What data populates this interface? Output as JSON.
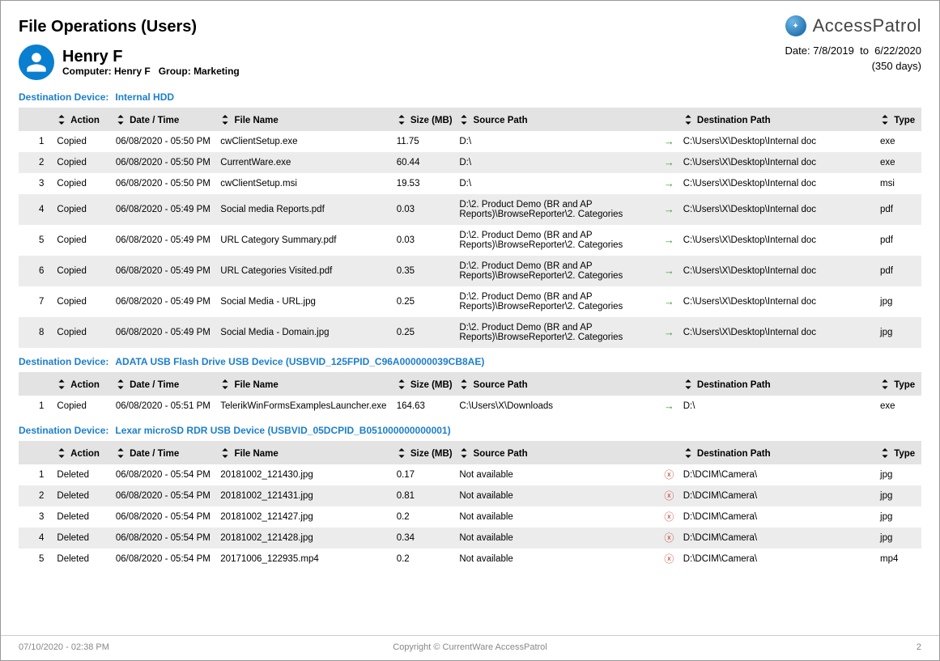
{
  "page": {
    "title": "File Operations (Users)",
    "brand": "AccessPatrol",
    "footer_timestamp": "07/10/2020 - 02:38 PM",
    "footer_copyright": "Copyright © CurrentWare AccessPatrol",
    "footer_page": "2"
  },
  "user": {
    "name": "Henry F",
    "computer_label": "Computer:",
    "computer_value": "Henry F",
    "group_label": "Group:",
    "group_value": "Marketing"
  },
  "daterange": {
    "prefix": "Date:",
    "from": "7/8/2019",
    "to_word": "to",
    "to": "6/22/2020",
    "days": "(350 days)"
  },
  "labels": {
    "dest_device": "Destination Device:",
    "col_action": "Action",
    "col_datetime": "Date / Time",
    "col_filename": "File Name",
    "col_size": "Size (MB)",
    "col_source": "Source Path",
    "col_dest": "Destination Path",
    "col_type": "Type"
  },
  "sections": [
    {
      "device": "Internal HDD",
      "rows": [
        {
          "idx": "1",
          "action": "Copied",
          "dt": "06/08/2020 - 05:50 PM",
          "fn": "cwClientSetup.exe",
          "size": "11.75",
          "src": "D:\\",
          "icon": "arrow",
          "dst": "C:\\Users\\X\\Desktop\\Internal doc",
          "type": "exe"
        },
        {
          "idx": "2",
          "action": "Copied",
          "dt": "06/08/2020 - 05:50 PM",
          "fn": "CurrentWare.exe",
          "size": "60.44",
          "src": "D:\\",
          "icon": "arrow",
          "dst": "C:\\Users\\X\\Desktop\\Internal doc",
          "type": "exe"
        },
        {
          "idx": "3",
          "action": "Copied",
          "dt": "06/08/2020 - 05:50 PM",
          "fn": "cwClientSetup.msi",
          "size": "19.53",
          "src": "D:\\",
          "icon": "arrow",
          "dst": "C:\\Users\\X\\Desktop\\Internal doc",
          "type": "msi"
        },
        {
          "idx": "4",
          "action": "Copied",
          "dt": "06/08/2020 - 05:49 PM",
          "fn": "Social media Reports.pdf",
          "size": "0.03",
          "src": "D:\\2. Product Demo (BR and AP Reports)\\BrowseReporter\\2. Categories",
          "icon": "arrow",
          "dst": "C:\\Users\\X\\Desktop\\Internal doc",
          "type": "pdf"
        },
        {
          "idx": "5",
          "action": "Copied",
          "dt": "06/08/2020 - 05:49 PM",
          "fn": "URL Category Summary.pdf",
          "size": "0.03",
          "src": "D:\\2. Product Demo (BR and AP Reports)\\BrowseReporter\\2. Categories",
          "icon": "arrow",
          "dst": "C:\\Users\\X\\Desktop\\Internal doc",
          "type": "pdf"
        },
        {
          "idx": "6",
          "action": "Copied",
          "dt": "06/08/2020 - 05:49 PM",
          "fn": "URL Categories Visited.pdf",
          "size": "0.35",
          "src": "D:\\2. Product Demo (BR and AP Reports)\\BrowseReporter\\2. Categories",
          "icon": "arrow",
          "dst": "C:\\Users\\X\\Desktop\\Internal doc",
          "type": "pdf"
        },
        {
          "idx": "7",
          "action": "Copied",
          "dt": "06/08/2020 - 05:49 PM",
          "fn": "Social Media - URL.jpg",
          "size": "0.25",
          "src": "D:\\2. Product Demo (BR and AP Reports)\\BrowseReporter\\2. Categories",
          "icon": "arrow",
          "dst": "C:\\Users\\X\\Desktop\\Internal doc",
          "type": "jpg"
        },
        {
          "idx": "8",
          "action": "Copied",
          "dt": "06/08/2020 - 05:49 PM",
          "fn": "Social Media - Domain.jpg",
          "size": "0.25",
          "src": "D:\\2. Product Demo (BR and AP Reports)\\BrowseReporter\\2. Categories",
          "icon": "arrow",
          "dst": "C:\\Users\\X\\Desktop\\Internal doc",
          "type": "jpg"
        }
      ]
    },
    {
      "device": "ADATA USB Flash Drive USB Device (USBVID_125FPID_C96A000000039CB8AE)",
      "rows": [
        {
          "idx": "1",
          "action": "Copied",
          "dt": "06/08/2020 - 05:51 PM",
          "fn": "TelerikWinFormsExamplesLauncher.exe",
          "size": "164.63",
          "src": "C:\\Users\\X\\Downloads",
          "icon": "arrow",
          "dst": "D:\\",
          "type": "exe"
        }
      ]
    },
    {
      "device": "Lexar microSD RDR USB Device (USBVID_05DCPID_B051000000000001)",
      "rows": [
        {
          "idx": "1",
          "action": "Deleted",
          "dt": "06/08/2020 - 05:54 PM",
          "fn": "20181002_121430.jpg",
          "size": "0.17",
          "src": "Not available",
          "icon": "del",
          "dst": "D:\\DCIM\\Camera\\",
          "type": "jpg"
        },
        {
          "idx": "2",
          "action": "Deleted",
          "dt": "06/08/2020 - 05:54 PM",
          "fn": "20181002_121431.jpg",
          "size": "0.81",
          "src": "Not available",
          "icon": "del",
          "dst": "D:\\DCIM\\Camera\\",
          "type": "jpg"
        },
        {
          "idx": "3",
          "action": "Deleted",
          "dt": "06/08/2020 - 05:54 PM",
          "fn": "20181002_121427.jpg",
          "size": "0.2",
          "src": "Not available",
          "icon": "del",
          "dst": "D:\\DCIM\\Camera\\",
          "type": "jpg"
        },
        {
          "idx": "4",
          "action": "Deleted",
          "dt": "06/08/2020 - 05:54 PM",
          "fn": "20181002_121428.jpg",
          "size": "0.34",
          "src": "Not available",
          "icon": "del",
          "dst": "D:\\DCIM\\Camera\\",
          "type": "jpg"
        },
        {
          "idx": "5",
          "action": "Deleted",
          "dt": "06/08/2020 - 05:54 PM",
          "fn": "20171006_122935.mp4",
          "size": "0.2",
          "src": "Not available",
          "icon": "del",
          "dst": "D:\\DCIM\\Camera\\",
          "type": "mp4"
        }
      ]
    }
  ]
}
